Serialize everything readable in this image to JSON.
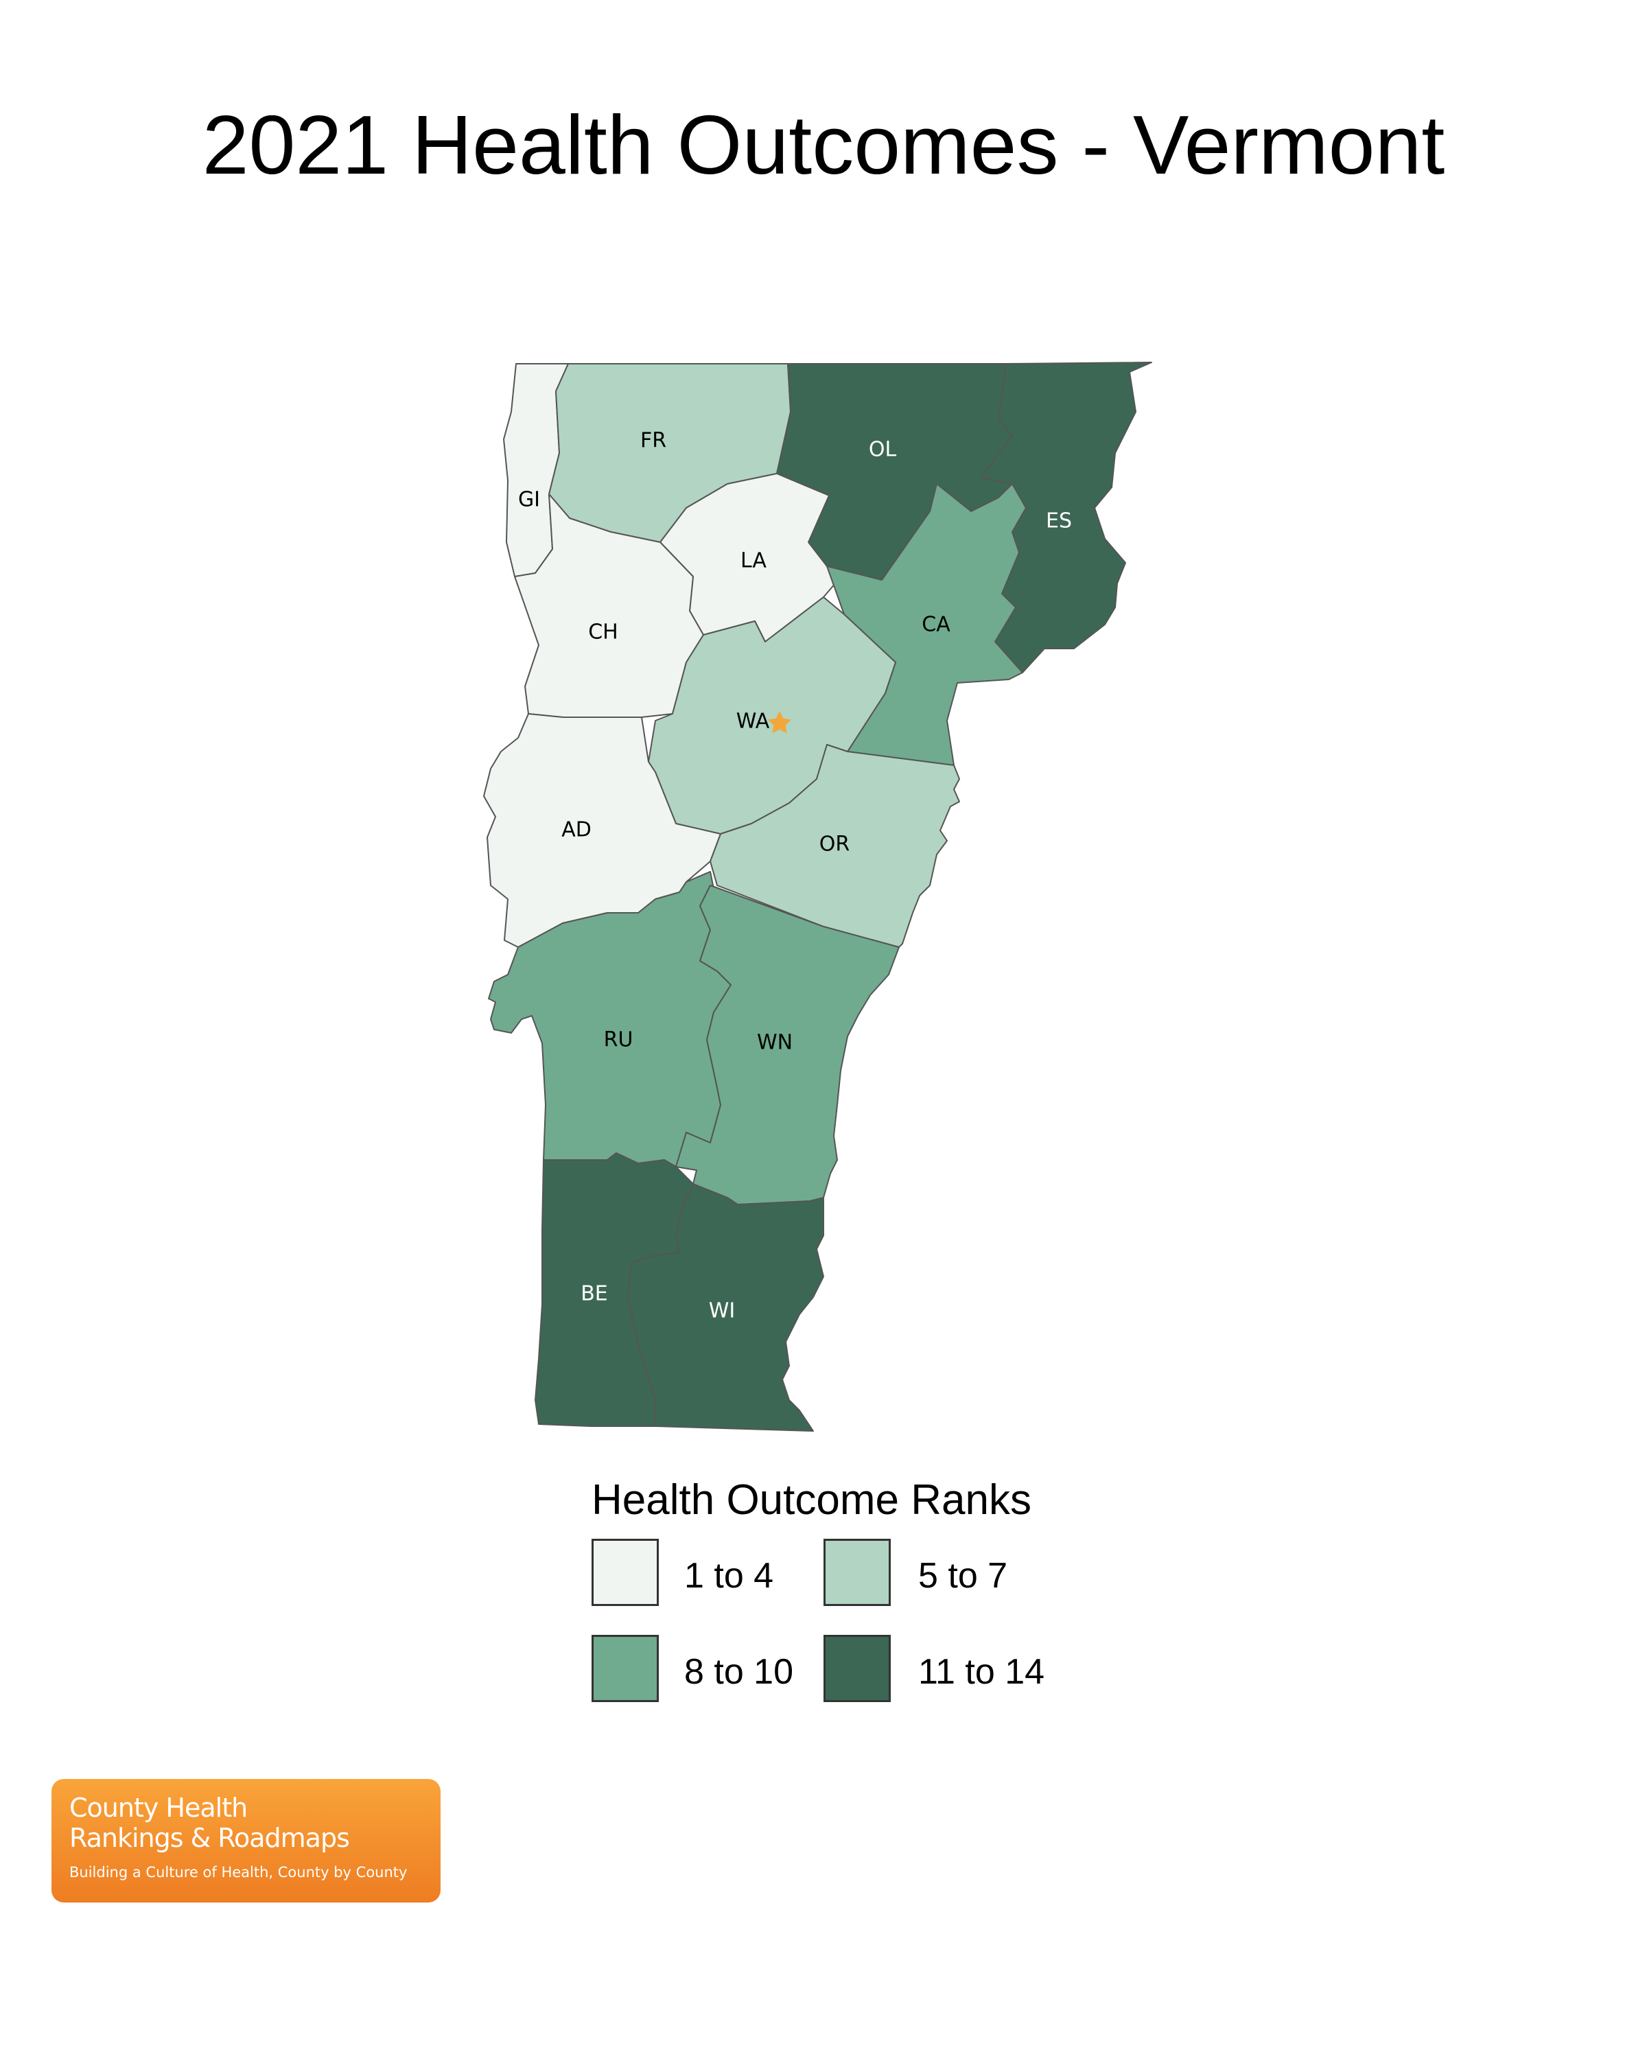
{
  "title": "2021 Health Outcomes - Vermont",
  "legend": {
    "title": "Health Outcome Ranks",
    "bins": [
      {
        "label": "1 to 4",
        "color": "#f1f5f2"
      },
      {
        "label": "5 to 7",
        "color": "#b2d4c3"
      },
      {
        "label": "8 to 10",
        "color": "#70ab8f"
      },
      {
        "label": "11 to 14",
        "color": "#3c6755"
      }
    ]
  },
  "counties": [
    {
      "code": "GI",
      "rank_bin": "1 to 4"
    },
    {
      "code": "FR",
      "rank_bin": "5 to 7"
    },
    {
      "code": "OL",
      "rank_bin": "11 to 14"
    },
    {
      "code": "ES",
      "rank_bin": "11 to 14"
    },
    {
      "code": "LA",
      "rank_bin": "1 to 4"
    },
    {
      "code": "CH",
      "rank_bin": "1 to 4"
    },
    {
      "code": "CA",
      "rank_bin": "8 to 10"
    },
    {
      "code": "WA",
      "rank_bin": "5 to 7"
    },
    {
      "code": "AD",
      "rank_bin": "1 to 4"
    },
    {
      "code": "OR",
      "rank_bin": "5 to 7"
    },
    {
      "code": "RU",
      "rank_bin": "8 to 10"
    },
    {
      "code": "WN",
      "rank_bin": "8 to 10"
    },
    {
      "code": "BE",
      "rank_bin": "11 to 14"
    },
    {
      "code": "WI",
      "rank_bin": "11 to 14"
    }
  ],
  "capital_marker_color": "#f2a73b",
  "logo": {
    "line1": "County Health",
    "line2": "Rankings & Roadmaps",
    "tagline": "Building a Culture of Health, County by County"
  }
}
